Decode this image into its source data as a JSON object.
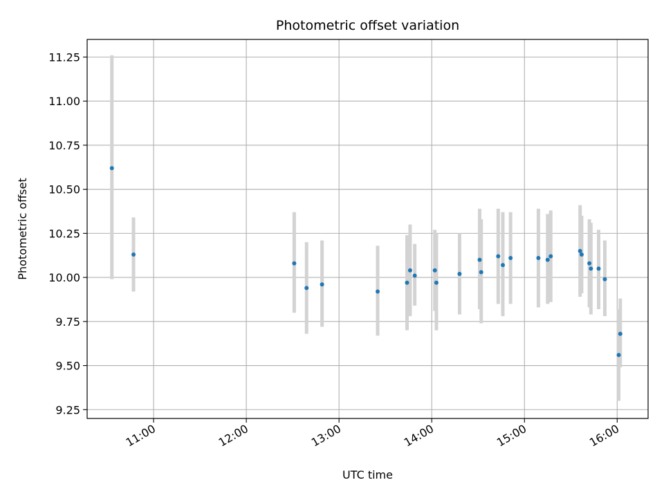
{
  "chart_data": {
    "type": "scatter",
    "title": "Photometric offset variation",
    "xlabel": "UTC time",
    "ylabel": "Photometric offset",
    "xlim": [
      "10:17",
      "16:20"
    ],
    "ylim": [
      9.2,
      11.35
    ],
    "x_ticks": [
      "11:00",
      "12:00",
      "13:00",
      "14:00",
      "15:00",
      "16:00"
    ],
    "y_ticks": [
      9.25,
      9.5,
      9.75,
      10.0,
      10.25,
      10.5,
      10.75,
      11.0,
      11.25
    ],
    "y_tick_labels": [
      "9.25",
      "9.50",
      "9.75",
      "10.00",
      "10.25",
      "10.50",
      "10.75",
      "11.00",
      "11.25"
    ],
    "grid": true,
    "colors": {
      "marker": "#1f77b4",
      "errorbar": "#d3d3d3",
      "grid": "#b0b0b0"
    },
    "points": [
      {
        "x": "10:33",
        "y": 10.62,
        "ylow": 9.99,
        "yhigh": 11.26
      },
      {
        "x": "10:47",
        "y": 10.13,
        "ylow": 9.92,
        "yhigh": 10.34
      },
      {
        "x": "12:31",
        "y": 10.08,
        "ylow": 9.8,
        "yhigh": 10.37
      },
      {
        "x": "12:39",
        "y": 9.94,
        "ylow": 9.68,
        "yhigh": 10.2
      },
      {
        "x": "12:49",
        "y": 9.96,
        "ylow": 9.72,
        "yhigh": 10.21
      },
      {
        "x": "13:25",
        "y": 9.92,
        "ylow": 9.67,
        "yhigh": 10.18
      },
      {
        "x": "13:44",
        "y": 9.97,
        "ylow": 9.7,
        "yhigh": 10.24
      },
      {
        "x": "13:46",
        "y": 10.04,
        "ylow": 9.78,
        "yhigh": 10.3
      },
      {
        "x": "13:49",
        "y": 10.01,
        "ylow": 9.84,
        "yhigh": 10.19
      },
      {
        "x": "14:02",
        "y": 10.04,
        "ylow": 9.81,
        "yhigh": 10.27
      },
      {
        "x": "14:03",
        "y": 9.97,
        "ylow": 9.7,
        "yhigh": 10.25
      },
      {
        "x": "14:18",
        "y": 10.02,
        "ylow": 9.79,
        "yhigh": 10.25
      },
      {
        "x": "14:31",
        "y": 10.1,
        "ylow": 9.82,
        "yhigh": 10.39
      },
      {
        "x": "14:32",
        "y": 10.03,
        "ylow": 9.74,
        "yhigh": 10.33
      },
      {
        "x": "14:43",
        "y": 10.12,
        "ylow": 9.85,
        "yhigh": 10.39
      },
      {
        "x": "14:46",
        "y": 10.07,
        "ylow": 9.78,
        "yhigh": 10.37
      },
      {
        "x": "14:51",
        "y": 10.11,
        "ylow": 9.85,
        "yhigh": 10.37
      },
      {
        "x": "15:09",
        "y": 10.11,
        "ylow": 9.83,
        "yhigh": 10.39
      },
      {
        "x": "15:15",
        "y": 10.1,
        "ylow": 9.85,
        "yhigh": 10.36
      },
      {
        "x": "15:17",
        "y": 10.12,
        "ylow": 9.86,
        "yhigh": 10.38
      },
      {
        "x": "15:36",
        "y": 10.15,
        "ylow": 9.89,
        "yhigh": 10.41
      },
      {
        "x": "15:37",
        "y": 10.13,
        "ylow": 9.91,
        "yhigh": 10.35
      },
      {
        "x": "15:42",
        "y": 10.08,
        "ylow": 9.83,
        "yhigh": 10.33
      },
      {
        "x": "15:43",
        "y": 10.05,
        "ylow": 9.79,
        "yhigh": 10.31
      },
      {
        "x": "15:48",
        "y": 10.05,
        "ylow": 9.82,
        "yhigh": 10.27
      },
      {
        "x": "15:52",
        "y": 9.99,
        "ylow": 9.78,
        "yhigh": 10.21
      },
      {
        "x": "16:01",
        "y": 9.56,
        "ylow": 9.3,
        "yhigh": 9.82
      },
      {
        "x": "16:02",
        "y": 9.68,
        "ylow": 9.49,
        "yhigh": 9.88
      }
    ]
  }
}
